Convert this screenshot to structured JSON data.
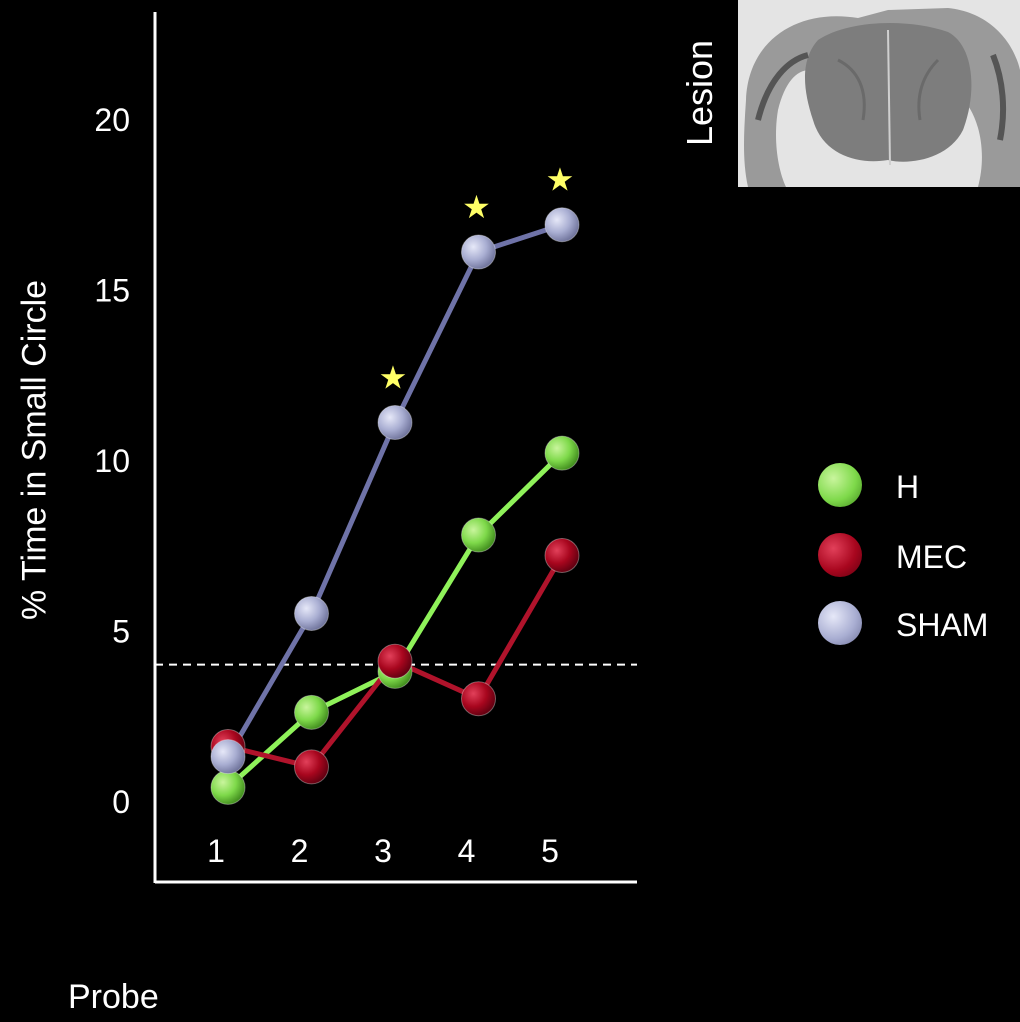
{
  "chart_data": {
    "type": "line",
    "xlabel": "Probe",
    "ylabel": "% Time in Small Circle",
    "x": [
      1,
      2,
      3,
      4,
      5
    ],
    "yticks": [
      0,
      5,
      10,
      15,
      20
    ],
    "ylim": [
      -2,
      23
    ],
    "chance_line": 4,
    "series": [
      {
        "name": "H",
        "color": "#7ed94a",
        "line_color": "#8ff25a",
        "values": [
          0.4,
          2.6,
          3.8,
          7.8,
          10.2
        ]
      },
      {
        "name": "MEC",
        "color": "#a8061e",
        "line_color": "#b0132b",
        "values": [
          1.6,
          1.0,
          4.1,
          3.0,
          7.2
        ]
      },
      {
        "name": "SHAM",
        "color": "#a9aed2",
        "line_color": "#6f73a8",
        "values": [
          1.3,
          5.5,
          11.1,
          16.1,
          16.9
        ]
      }
    ],
    "significance_markers": [
      3,
      4,
      5
    ],
    "significance_symbol": "★",
    "marker_color": "#ffff66",
    "legend_position": "right",
    "grid": false
  },
  "inset": {
    "label": "Lesion"
  }
}
